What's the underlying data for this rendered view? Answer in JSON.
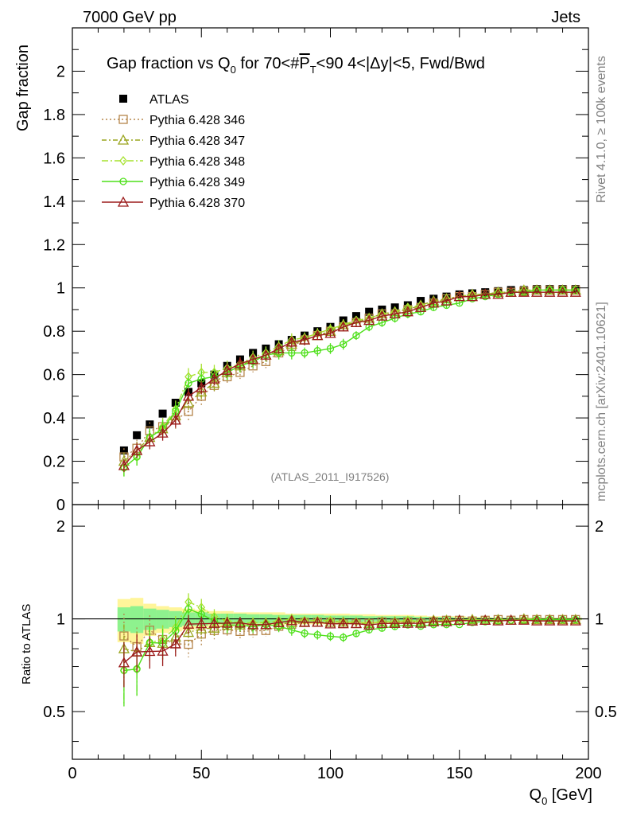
{
  "header": {
    "left": "7000 GeV pp",
    "right": "Jets"
  },
  "side": {
    "rivet": "Rivet 4.1.0, ≥ 100k events",
    "mcplots": "mcplots.cern.ch [arXiv:2401.10621]"
  },
  "chart_data": {
    "type": "scatter",
    "title": "Gap fraction vs Q0 for 70<#P̅T<90  4<|Δy|<5, Fwd/Bwd",
    "title_parts": {
      "pre": "Gap fraction vs Q",
      "sub0": "0",
      "mid": " for 70<#",
      "pbar": "P",
      "subT": "T",
      "post": "<90  4<|Δy|<5, Fwd/Bwd"
    },
    "analysis_tag": "(ATLAS_2011_I917526)",
    "ylabel": "Gap fraction",
    "ratio_ylabel": "Ratio to ATLAS",
    "xlabel_main": "Q",
    "xlabel_sub": "0",
    "xlabel_unit": " [GeV]",
    "xlim": [
      0,
      200
    ],
    "ylim": [
      0,
      2.2
    ],
    "ratio_ylim": [
      0.35,
      2.35
    ],
    "x_ticks": [
      0,
      50,
      100,
      150,
      200
    ],
    "x_tick_labels": [
      "0",
      "50",
      "100",
      "150",
      "200"
    ],
    "y_ticks": [
      0,
      0.2,
      0.4,
      0.6,
      0.8,
      1,
      1.2,
      1.4,
      1.6,
      1.8,
      2
    ],
    "y_tick_labels": [
      "0",
      "0.2",
      "0.4",
      "0.6",
      "0.8",
      "1",
      "1.2",
      "1.4",
      "1.6",
      "1.8",
      "2"
    ],
    "ratio_ticks": [
      0.5,
      1,
      2
    ],
    "ratio_tick_labels": [
      "0.5",
      "1",
      "2"
    ],
    "x": [
      20,
      25,
      30,
      35,
      40,
      45,
      50,
      55,
      60,
      65,
      70,
      75,
      80,
      85,
      90,
      95,
      100,
      105,
      110,
      115,
      120,
      125,
      130,
      135,
      140,
      145,
      150,
      155,
      160,
      165,
      170,
      175,
      180,
      185,
      190,
      195
    ],
    "data_series": {
      "name": "ATLAS",
      "values": [
        0.25,
        0.32,
        0.37,
        0.42,
        0.47,
        0.52,
        0.56,
        0.6,
        0.64,
        0.67,
        0.7,
        0.72,
        0.74,
        0.76,
        0.78,
        0.8,
        0.82,
        0.85,
        0.87,
        0.89,
        0.9,
        0.91,
        0.92,
        0.94,
        0.95,
        0.96,
        0.97,
        0.975,
        0.98,
        0.985,
        0.99,
        0.99,
        0.995,
        0.995,
        0.995,
        0.995
      ],
      "band_yellow": [
        0.16,
        0.17,
        0.12,
        0.1,
        0.09,
        0.08,
        0.07,
        0.06,
        0.06,
        0.05,
        0.05,
        0.05,
        0.05,
        0.04,
        0.04,
        0.04,
        0.04,
        0.04,
        0.035,
        0.035,
        0.03,
        0.03,
        0.03,
        0.025,
        0.02,
        0.02,
        0.02,
        0.015,
        0.015,
        0.01,
        0.01,
        0.01,
        0.01,
        0.01,
        0.01,
        0.01
      ],
      "band_green": [
        0.09,
        0.1,
        0.08,
        0.07,
        0.06,
        0.05,
        0.05,
        0.04,
        0.04,
        0.04,
        0.035,
        0.035,
        0.03,
        0.03,
        0.03,
        0.03,
        0.025,
        0.025,
        0.025,
        0.02,
        0.02,
        0.02,
        0.02,
        0.015,
        0.015,
        0.015,
        0.01,
        0.01,
        0.01,
        0.008,
        0.008,
        0.006,
        0.006,
        0.006,
        0.006,
        0.006
      ]
    },
    "series": [
      {
        "name": "Pythia 6.428 346",
        "color": "#b5854a",
        "marker": "square",
        "dash": "2,3",
        "values": [
          0.22,
          0.26,
          0.34,
          0.36,
          0.39,
          0.43,
          0.5,
          0.55,
          0.59,
          0.61,
          0.64,
          0.66,
          0.7,
          0.73,
          0.76,
          0.78,
          0.8,
          0.82,
          0.84,
          0.86,
          0.88,
          0.88,
          0.9,
          0.91,
          0.93,
          0.95,
          0.96,
          0.96,
          0.97,
          0.98,
          0.98,
          0.985,
          0.99,
          0.99,
          0.99,
          0.99
        ],
        "errors": [
          0.04,
          0.04,
          0.04,
          0.04,
          0.04,
          0.04,
          0.04,
          0.035,
          0.035,
          0.03,
          0.03,
          0.03,
          0.03,
          0.03,
          0.025,
          0.025,
          0.025,
          0.025,
          0.02,
          0.02,
          0.02,
          0.02,
          0.02,
          0.015,
          0.015,
          0.015,
          0.01,
          0.01,
          0.01,
          0.01,
          0.01,
          0.008,
          0.008,
          0.008,
          0.008,
          0.008
        ]
      },
      {
        "name": "Pythia 6.428 347",
        "color": "#9aa51e",
        "marker": "triangle",
        "dash": "6,3,2,3",
        "values": [
          0.2,
          0.25,
          0.31,
          0.35,
          0.41,
          0.47,
          0.52,
          0.56,
          0.61,
          0.64,
          0.67,
          0.69,
          0.71,
          0.74,
          0.76,
          0.78,
          0.8,
          0.83,
          0.84,
          0.86,
          0.88,
          0.89,
          0.9,
          0.92,
          0.94,
          0.95,
          0.96,
          0.97,
          0.97,
          0.98,
          0.98,
          0.99,
          0.99,
          0.99,
          0.99,
          0.99
        ],
        "errors": [
          0.04,
          0.04,
          0.04,
          0.04,
          0.04,
          0.04,
          0.04,
          0.035,
          0.035,
          0.03,
          0.03,
          0.03,
          0.03,
          0.03,
          0.025,
          0.025,
          0.025,
          0.025,
          0.02,
          0.02,
          0.02,
          0.02,
          0.02,
          0.015,
          0.015,
          0.015,
          0.01,
          0.01,
          0.01,
          0.01,
          0.01,
          0.008,
          0.008,
          0.008,
          0.008,
          0.008
        ]
      },
      {
        "name": "Pythia 6.428 348",
        "color": "#a6e22e",
        "marker": "diamond",
        "dash": "8,3,2,3",
        "values": [
          0.17,
          0.22,
          0.31,
          0.36,
          0.44,
          0.59,
          0.61,
          0.61,
          0.63,
          0.65,
          0.68,
          0.7,
          0.73,
          0.76,
          0.77,
          0.79,
          0.81,
          0.83,
          0.85,
          0.86,
          0.88,
          0.89,
          0.91,
          0.92,
          0.93,
          0.95,
          0.96,
          0.97,
          0.97,
          0.98,
          0.98,
          0.99,
          0.99,
          0.99,
          0.99,
          0.99
        ],
        "errors": [
          0.04,
          0.04,
          0.04,
          0.04,
          0.04,
          0.04,
          0.04,
          0.035,
          0.035,
          0.03,
          0.03,
          0.03,
          0.03,
          0.03,
          0.025,
          0.025,
          0.025,
          0.025,
          0.02,
          0.02,
          0.02,
          0.02,
          0.02,
          0.015,
          0.015,
          0.015,
          0.01,
          0.01,
          0.01,
          0.01,
          0.01,
          0.008,
          0.008,
          0.008,
          0.008,
          0.008
        ]
      },
      {
        "name": "Pythia 6.428 349",
        "color": "#4ee01a",
        "marker": "circle",
        "dash": "",
        "values": [
          0.17,
          0.22,
          0.31,
          0.35,
          0.43,
          0.56,
          0.58,
          0.59,
          0.61,
          0.64,
          0.66,
          0.69,
          0.7,
          0.7,
          0.7,
          0.71,
          0.72,
          0.74,
          0.78,
          0.82,
          0.84,
          0.86,
          0.88,
          0.89,
          0.91,
          0.92,
          0.93,
          0.95,
          0.96,
          0.97,
          0.98,
          0.98,
          0.99,
          0.99,
          0.99,
          0.99
        ],
        "errors": [
          0.04,
          0.04,
          0.04,
          0.04,
          0.04,
          0.04,
          0.04,
          0.035,
          0.035,
          0.03,
          0.03,
          0.03,
          0.03,
          0.03,
          0.025,
          0.025,
          0.025,
          0.025,
          0.02,
          0.02,
          0.02,
          0.02,
          0.02,
          0.015,
          0.015,
          0.015,
          0.01,
          0.01,
          0.01,
          0.01,
          0.01,
          0.008,
          0.008,
          0.008,
          0.008,
          0.008
        ]
      },
      {
        "name": "Pythia 6.428 370",
        "color": "#9b1b1b",
        "marker": "triangle",
        "dash": "",
        "values": [
          0.18,
          0.25,
          0.29,
          0.33,
          0.39,
          0.5,
          0.54,
          0.58,
          0.62,
          0.65,
          0.67,
          0.69,
          0.72,
          0.75,
          0.76,
          0.78,
          0.79,
          0.82,
          0.84,
          0.85,
          0.87,
          0.88,
          0.89,
          0.91,
          0.93,
          0.94,
          0.96,
          0.96,
          0.97,
          0.97,
          0.98,
          0.98,
          0.98,
          0.98,
          0.98,
          0.98
        ],
        "errors": [
          0.03,
          0.035,
          0.035,
          0.035,
          0.035,
          0.035,
          0.03,
          0.03,
          0.03,
          0.03,
          0.025,
          0.025,
          0.025,
          0.025,
          0.025,
          0.02,
          0.02,
          0.02,
          0.02,
          0.02,
          0.02,
          0.015,
          0.015,
          0.015,
          0.015,
          0.01,
          0.01,
          0.01,
          0.01,
          0.01,
          0.008,
          0.008,
          0.008,
          0.008,
          0.008,
          0.008
        ]
      }
    ]
  }
}
